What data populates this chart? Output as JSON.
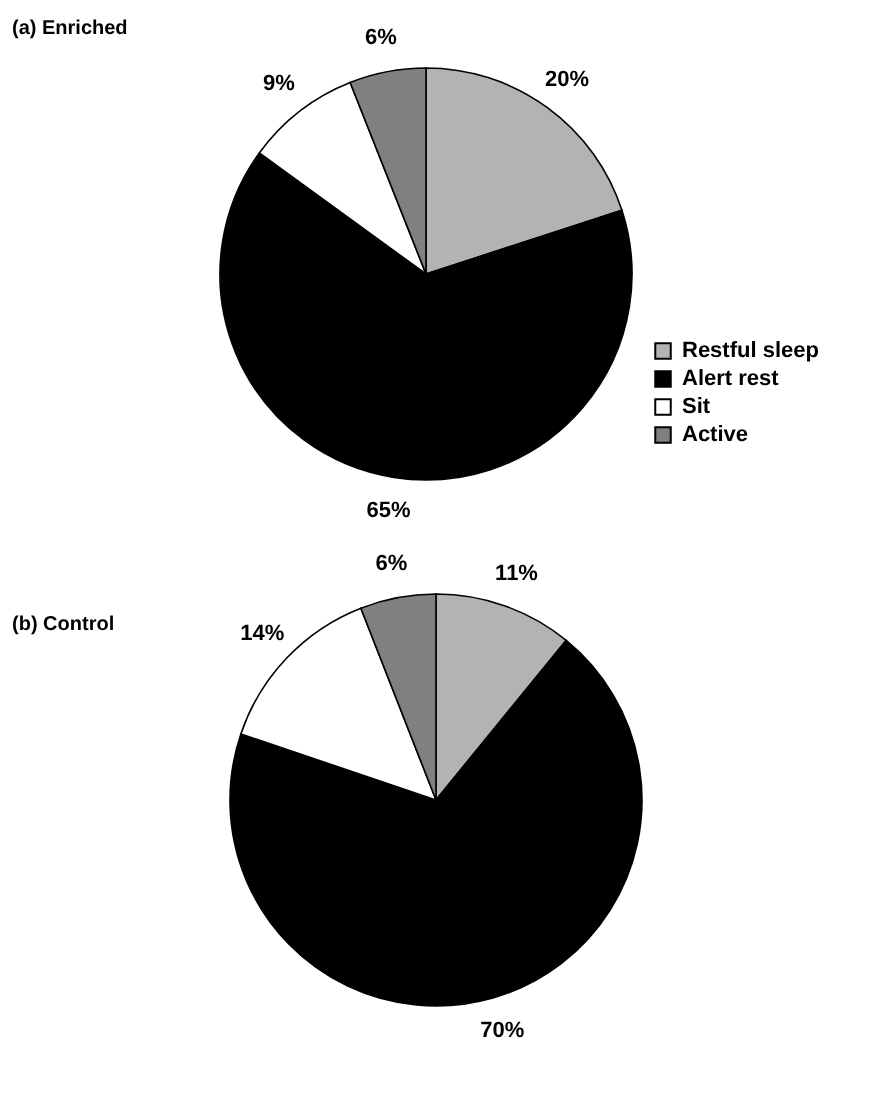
{
  "chart_data": [
    {
      "type": "pie",
      "title": "(a) Enriched",
      "categories": [
        "Restful sleep",
        "Alert rest",
        "Sit",
        "Active"
      ],
      "values": [
        20,
        65,
        9,
        6
      ],
      "colors": [
        "#b3b3b3",
        "#000000",
        "#ffffff",
        "#808080"
      ],
      "value_labels": [
        "20%",
        "65%",
        "9%",
        "6%"
      ],
      "legend": "right"
    },
    {
      "type": "pie",
      "title": "(b) Control",
      "categories": [
        null,
        null,
        null,
        null
      ],
      "values": [
        11,
        70,
        14,
        6
      ],
      "colors": [
        "#b3b3b3",
        "#000000",
        "#ffffff",
        "#808080"
      ],
      "value_labels": [
        "11%",
        "70%",
        "14%",
        "6%"
      ],
      "legend": false
    }
  ]
}
